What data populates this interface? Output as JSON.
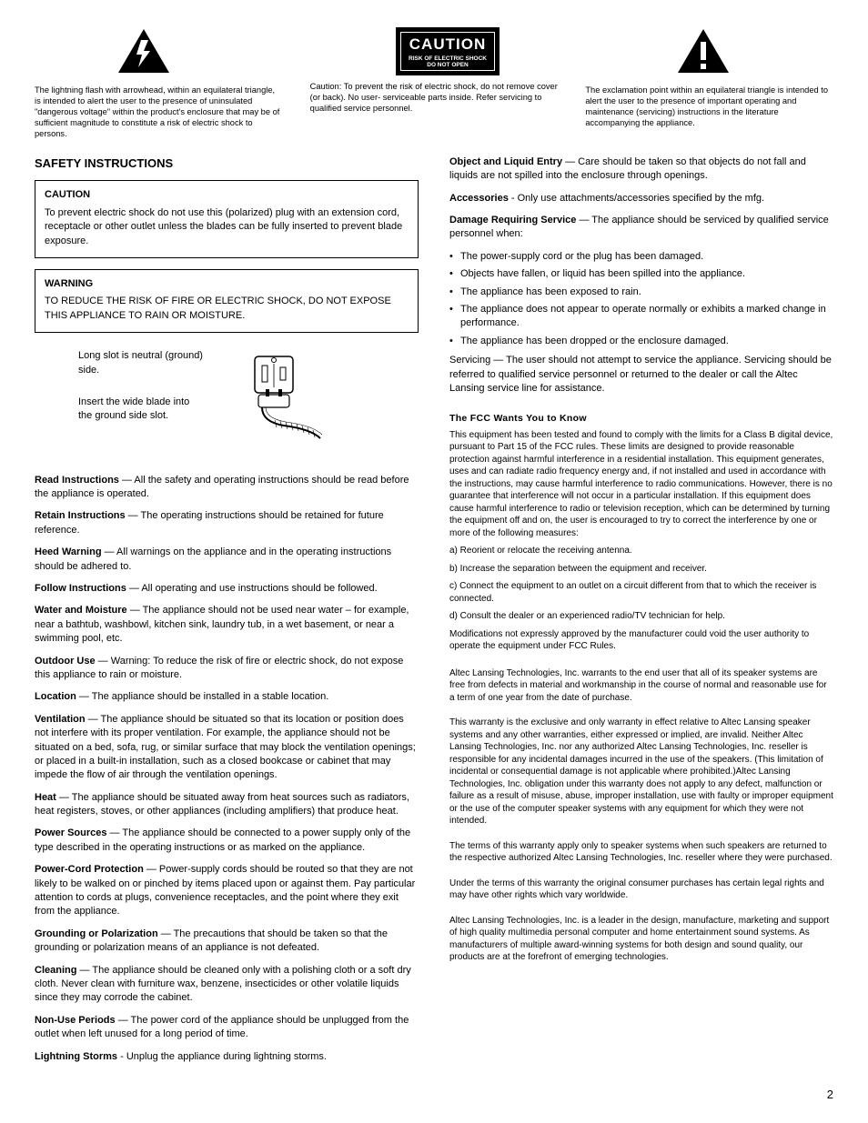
{
  "top": {
    "left_caption": "The lightning flash with arrowhead, within an equilateral triangle, is intended to alert the user to the presence of uninsulated \"dangerous voltage\" within the product's enclosure that may be of sufficient magnitude to constitute a risk of electric shock to persons.",
    "center_box_big": "CAUTION",
    "center_box_line1": "RISK OF ELECTRIC SHOCK",
    "center_box_line2": "DO NOT OPEN",
    "center_caption": "Caution: To prevent the risk of electric shock, do not remove cover (or back). No user- serviceable parts inside. Refer servicing to qualified service personnel.",
    "right_caption": "The exclamation point within an equilateral triangle is intended to alert the user to the presence of important operating and maintenance (servicing) instructions in the literature accompanying the appliance."
  },
  "safety_title": "SAFETY INSTRUCTIONS",
  "caution_box": {
    "title": "CAUTION",
    "body": "To prevent electric shock do not use this (polarized) plug with an extension cord, receptacle or other outlet unless the blades can be fully inserted to prevent blade exposure."
  },
  "warning_box": {
    "title": "WARNING",
    "body": "TO REDUCE THE RISK OF FIRE OR ELECTRIC SHOCK, DO NOT EXPOSE THIS APPLIANCE TO RAIN OR MOISTURE."
  },
  "plug": {
    "line1": "Long slot is neutral (ground) side.",
    "line2": "Insert the wide blade into the ground side slot."
  },
  "left_paras": [
    {
      "b": "Read Instructions",
      "t": " — All the safety and operating instructions should be read before the appliance is operated."
    },
    {
      "b": "Retain Instructions",
      "t": " — The operating instructions should be retained for future reference."
    },
    {
      "b": "Heed Warning",
      "t": " — All warnings on the appliance and in the operating instructions should be adhered to."
    },
    {
      "b": "Follow Instructions",
      "t": " — All operating and use instructions should be followed."
    },
    {
      "b": "Water and Moisture",
      "t": " — The appliance should not be used near water – for example, near a bathtub, washbowl, kitchen sink, laundry tub, in a wet basement, or near a swimming pool, etc."
    },
    {
      "b": "Outdoor Use",
      "t": " — Warning: To reduce the risk of fire or electric shock, do not expose this appliance to rain or moisture."
    },
    {
      "b": "Location",
      "t": " — The appliance should be installed in a stable location."
    },
    {
      "b": "Ventilation",
      "t": " — The appliance should be situated so that its location or position does not interfere with its proper ventilation. For example, the appliance should not be situated on a bed, sofa, rug, or similar surface that may block the ventilation openings; or placed in a built-in installation, such as a closed bookcase or cabinet that may impede the flow of air through the ventilation openings."
    },
    {
      "b": "Heat",
      "t": " — The appliance should be situated away from heat sources such as radiators, heat registers, stoves, or other appliances (including amplifiers) that produce heat."
    },
    {
      "b": "Power Sources",
      "t": " — The appliance should be connected to a power supply only of the type described in the operating instructions or as marked on the appliance."
    },
    {
      "b": "Power-Cord Protection",
      "t": " — Power-supply cords should be routed so that they are not likely to be walked on or pinched by items placed upon or against them. Pay particular attention to cords at plugs, convenience receptacles, and the point where they exit from the appliance."
    },
    {
      "b": "Grounding or Polarization",
      "t": " — The precautions that should be taken so that the grounding or polarization means of an appliance is not defeated."
    },
    {
      "b": "Cleaning",
      "t": " — The appliance should be cleaned only with a polishing cloth or a soft dry cloth. Never clean with furniture wax, benzene, insecticides or other volatile liquids since they may corrode the cabinet."
    },
    {
      "b": "Non-Use Periods",
      "t": " — The power cord of the appliance should be unplugged from the outlet when left unused for a long period of time."
    },
    {
      "b": "Lightning Storms",
      "t": " - Unplug the appliance during lightning storms."
    }
  ],
  "right_paras_top": [
    {
      "b": "Object and Liquid Entry",
      "t": " — Care should be taken so that objects do not fall and liquids are not spilled into the enclosure through openings."
    },
    {
      "b": "Accessories",
      "t": " - Only use attachments/accessories specified by the mfg."
    },
    {
      "b": "Damage Requiring Service",
      "t": " — The appliance should be serviced by qualified service personnel when:"
    }
  ],
  "bullets": [
    "The power-supply cord or the plug has been damaged.",
    "Objects have fallen, or liquid has been spilled into the appliance.",
    "The appliance has been exposed to rain.",
    "The appliance does not appear to operate normally or exhibits a marked change in performance.",
    "The appliance has been dropped or the enclosure damaged."
  ],
  "servicing": "Servicing — The user should not attempt to service the appliance. Servicing should be referred to qualified service personnel or returned to the dealer or call the Altec Lansing service line for assistance.",
  "fcc_title": "The FCC Wants You to Know",
  "fcc_body": "This equipment has been tested and found to comply with the limits for a Class B digital device, pursuant to Part 15 of the FCC rules. These limits are designed to provide reasonable protection against harmful interference in a residential installation. This equipment generates, uses and can radiate radio frequency energy and, if not installed and used in accordance with the instructions, may cause harmful interference to radio communications. However, there is no guarantee that interference will not occur in a particular installation. If this equipment does cause harmful interference to radio or television reception, which can be determined by turning the equipment off and on, the user is encouraged to try to correct the interference by one or more of the following measures:",
  "fcc_list": [
    "a) Reorient or relocate the receiving antenna.",
    "b) Increase the separation between the equipment and receiver.",
    "c) Connect the equipment to an outlet on a circuit different from that to which the receiver is connected.",
    "d) Consult the dealer or an experienced radio/TV technician for help."
  ],
  "fcc_mod": "Modifications not expressly approved by the manufacturer could void the user authority to operate the equipment under FCC Rules.",
  "warranty": [
    "Altec Lansing Technologies, Inc. warrants to the end user that all of its speaker systems are free from defects in material and workmanship in the course of normal and reasonable use for a term of one year from the date of purchase.",
    "This warranty is the exclusive and only warranty in effect relative to Altec Lansing speaker systems and any other warranties, either expressed or implied, are invalid.  Neither Altec Lansing Technologies, Inc. nor any authorized Altec Lansing Technologies, Inc. reseller is responsible for any incidental damages incurred in the use of the speakers.  (This limitation of incidental or consequential damage is not applicable where prohibited.)Altec Lansing Technologies, Inc. obligation under this warranty does not apply to any defect, malfunction or failure as a result of misuse, abuse, improper installation, use with faulty or improper equipment or the use of the computer speaker systems with any equipment for which they were not intended.",
    "The terms of this warranty apply only to speaker systems when such speakers are returned to the respective authorized Altec Lansing Technologies, Inc. reseller where they were purchased.",
    "Under the terms of this warranty the original consumer purchases has certain legal rights and may have other rights which vary worldwide.",
    "Altec Lansing Technologies, Inc. is a leader in the design, manufacture, marketing and support of high quality multimedia personal computer and home entertainment sound systems.  As manufacturers of multiple award-winning systems for both design and sound quality, our products are at the forefront of emerging technologies."
  ],
  "page_num": "2"
}
